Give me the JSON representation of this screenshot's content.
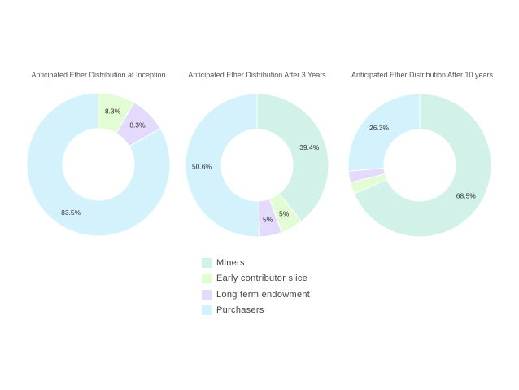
{
  "colors": {
    "Miners": "#d2f2e9",
    "Early contributor slice": "#e2fcd3",
    "Long term endowment": "#e4dafc",
    "Purchasers": "#d3f2fc"
  },
  "legend": {
    "items": [
      {
        "label": "Miners",
        "color": "#d2f2e9"
      },
      {
        "label": "Early contributor slice",
        "color": "#e2fcd3"
      },
      {
        "label": "Long term endowment",
        "color": "#e4dafc"
      },
      {
        "label": "Purchasers",
        "color": "#d3f2fc"
      }
    ]
  },
  "chart_data": [
    {
      "type": "pie",
      "title": "Anticipated Ether Distribution at Inception",
      "labels": [
        "Miners",
        "Early contributor slice",
        "Long term endowment",
        "Purchasers"
      ],
      "values": [
        0,
        8.3,
        8.3,
        83.5
      ],
      "data_labels": [
        "",
        "8.3%",
        "8.3%",
        "83.5%"
      ],
      "legend_position": "bottom"
    },
    {
      "type": "pie",
      "title": "Anticipated Ether Distribution After 3 Years",
      "labels": [
        "Miners",
        "Early contributor slice",
        "Long term endowment",
        "Purchasers"
      ],
      "values": [
        39.4,
        5,
        5,
        50.6
      ],
      "data_labels": [
        "39.4%",
        "5%",
        "5%",
        "50.6%"
      ],
      "legend_position": "bottom"
    },
    {
      "type": "pie",
      "title": "Anticipated Ether Distribution After 10 years",
      "labels": [
        "Miners",
        "Early contributor slice",
        "Long term endowment",
        "Purchasers"
      ],
      "values": [
        68.5,
        2.6,
        2.6,
        26.3
      ],
      "data_labels": [
        "68.5%",
        "",
        "",
        "26.3%"
      ],
      "legend_position": "bottom"
    }
  ]
}
